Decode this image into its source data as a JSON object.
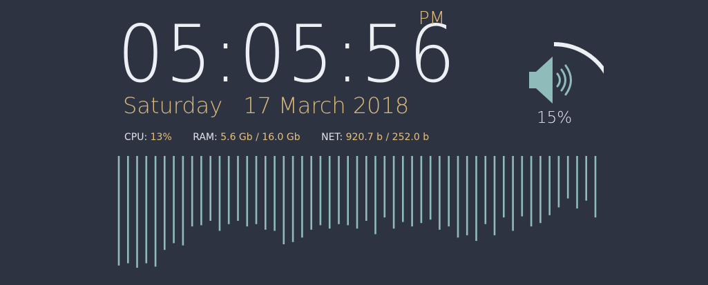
{
  "clock": {
    "time": "05:05:56",
    "ampm": "PM",
    "day": "Saturday",
    "date": "17 March 2018"
  },
  "stats": {
    "cpu_label": "CPU:",
    "cpu_value": "13%",
    "ram_label": "RAM:",
    "ram_value": "5.6 Gb / 16.0 Gb",
    "net_label": "NET:",
    "net_value": "920.7 b / 252.0 b"
  },
  "volume": {
    "level": 0.15,
    "text": "15%",
    "icon": "speaker-icon"
  },
  "colors": {
    "background": "#2e3341",
    "accent": "#e5c07b",
    "teal": "#8fbcbb",
    "text": "#eceff4"
  },
  "visualizer": {
    "bars": [
      0.98,
      0.96,
      1.0,
      0.96,
      0.99,
      0.84,
      0.78,
      0.8,
      0.63,
      0.62,
      0.58,
      0.67,
      0.61,
      0.58,
      0.63,
      0.61,
      0.66,
      0.67,
      0.79,
      0.77,
      0.73,
      0.66,
      0.62,
      0.65,
      0.61,
      0.62,
      0.65,
      0.58,
      0.7,
      0.55,
      0.65,
      0.59,
      0.63,
      0.6,
      0.57,
      0.66,
      0.63,
      0.73,
      0.71,
      0.76,
      0.61,
      0.71,
      0.55,
      0.67,
      0.54,
      0.63,
      0.6,
      0.53,
      0.46,
      0.38,
      0.47,
      0.4,
      0.55
    ]
  }
}
